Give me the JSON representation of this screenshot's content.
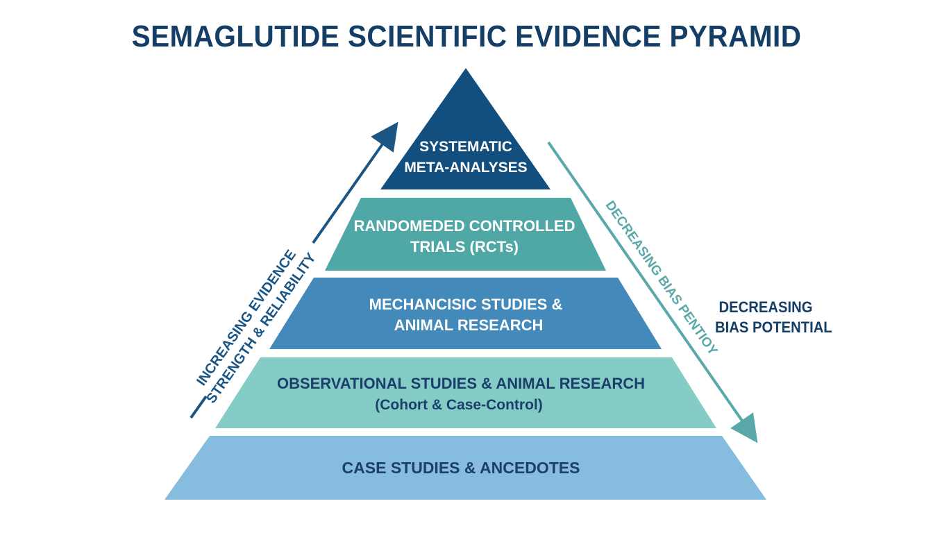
{
  "title": "SEMAGLUTIDE SCIENTIFIC EVIDENCE PYRAMID",
  "tiers": [
    {
      "lines": [
        "SYSTEMATIC",
        "META-ANALYSES"
      ],
      "color": "#134f7e",
      "text_color": "#ffffff"
    },
    {
      "lines": [
        "RANDOMEDED CONTROLLED",
        "TRIALS (RCTs)"
      ],
      "color": "#4fa8a6",
      "text_color": "#ffffff"
    },
    {
      "lines": [
        "MECHANCISIC STUDIES &",
        "ANIMAL RESEARCH"
      ],
      "color": "#4389b9",
      "text_color": "#ffffff"
    },
    {
      "lines": [
        "OBSERVATIONAL STUDIES & ANIMAL RESEARCH",
        "(Cohort & Case-Control)"
      ],
      "color": "#86ccc6",
      "text_color": "#1a3f6a"
    },
    {
      "lines": [
        "CASE STUDIES & ANCEDOTES"
      ],
      "color": "#86bcdd",
      "text_color": "#1a3f6a"
    }
  ],
  "left_arrow": {
    "lines": [
      "INCREASING EVIDENCE",
      "STRENGTH & RELIABILITY"
    ],
    "color": "#1b5584"
  },
  "right_arrow": {
    "label": "DECREASING BIAS PENTIOY",
    "color": "#5aa8a8"
  },
  "side_label": {
    "lines": [
      "DECREASING",
      "BIAS POTENTIAL"
    ]
  }
}
